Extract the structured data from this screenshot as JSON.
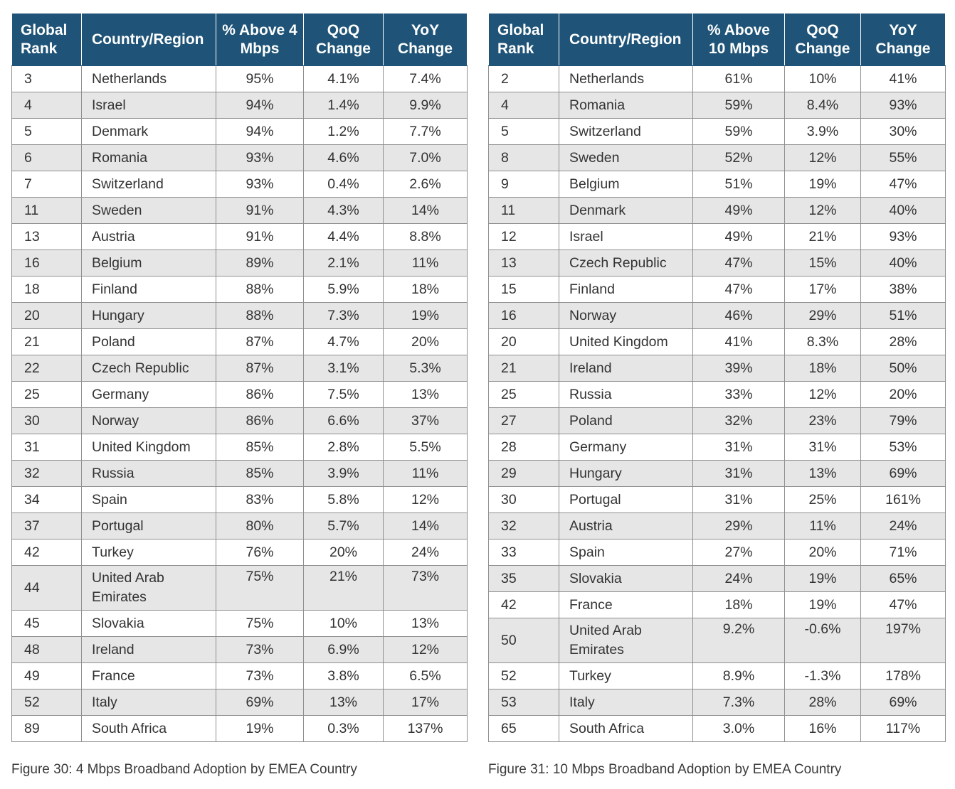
{
  "left": {
    "headers": {
      "rank": "Global Rank",
      "country": "Country/Region",
      "pct": "% Above 4 Mbps",
      "qoq": "QoQ Change",
      "yoy": "YoY Change"
    },
    "rows": [
      {
        "rank": "3",
        "country": "Netherlands",
        "pct": "95%",
        "qoq": "4.1%",
        "yoy": "7.4%"
      },
      {
        "rank": "4",
        "country": "Israel",
        "pct": "94%",
        "qoq": "1.4%",
        "yoy": "9.9%"
      },
      {
        "rank": "5",
        "country": "Denmark",
        "pct": "94%",
        "qoq": "1.2%",
        "yoy": "7.7%"
      },
      {
        "rank": "6",
        "country": "Romania",
        "pct": "93%",
        "qoq": "4.6%",
        "yoy": "7.0%"
      },
      {
        "rank": "7",
        "country": "Switzerland",
        "pct": "93%",
        "qoq": "0.4%",
        "yoy": "2.6%"
      },
      {
        "rank": "11",
        "country": "Sweden",
        "pct": "91%",
        "qoq": "4.3%",
        "yoy": "14%"
      },
      {
        "rank": "13",
        "country": "Austria",
        "pct": "91%",
        "qoq": "4.4%",
        "yoy": "8.8%"
      },
      {
        "rank": "16",
        "country": "Belgium",
        "pct": "89%",
        "qoq": "2.1%",
        "yoy": "11%"
      },
      {
        "rank": "18",
        "country": "Finland",
        "pct": "88%",
        "qoq": "5.9%",
        "yoy": "18%"
      },
      {
        "rank": "20",
        "country": "Hungary",
        "pct": "88%",
        "qoq": "7.3%",
        "yoy": "19%"
      },
      {
        "rank": "21",
        "country": "Poland",
        "pct": "87%",
        "qoq": "4.7%",
        "yoy": "20%"
      },
      {
        "rank": "22",
        "country": "Czech Republic",
        "pct": "87%",
        "qoq": "3.1%",
        "yoy": "5.3%"
      },
      {
        "rank": "25",
        "country": "Germany",
        "pct": "86%",
        "qoq": "7.5%",
        "yoy": "13%"
      },
      {
        "rank": "30",
        "country": "Norway",
        "pct": "86%",
        "qoq": "6.6%",
        "yoy": "37%"
      },
      {
        "rank": "31",
        "country": "United Kingdom",
        "pct": "85%",
        "qoq": "2.8%",
        "yoy": "5.5%"
      },
      {
        "rank": "32",
        "country": "Russia",
        "pct": "85%",
        "qoq": "3.9%",
        "yoy": "11%"
      },
      {
        "rank": "34",
        "country": "Spain",
        "pct": "83%",
        "qoq": "5.8%",
        "yoy": "12%"
      },
      {
        "rank": "37",
        "country": "Portugal",
        "pct": "80%",
        "qoq": "5.7%",
        "yoy": "14%"
      },
      {
        "rank": "42",
        "country": "Turkey",
        "pct": "76%",
        "qoq": "20%",
        "yoy": "24%"
      },
      {
        "rank": "44",
        "country": "United Arab Emirates",
        "pct": "75%",
        "qoq": "21%",
        "yoy": "73%"
      },
      {
        "rank": "45",
        "country": "Slovakia",
        "pct": "75%",
        "qoq": "10%",
        "yoy": "13%"
      },
      {
        "rank": "48",
        "country": "Ireland",
        "pct": "73%",
        "qoq": "6.9%",
        "yoy": "12%"
      },
      {
        "rank": "49",
        "country": "France",
        "pct": "73%",
        "qoq": "3.8%",
        "yoy": "6.5%"
      },
      {
        "rank": "52",
        "country": "Italy",
        "pct": "69%",
        "qoq": "13%",
        "yoy": "17%"
      },
      {
        "rank": "89",
        "country": "South Africa",
        "pct": "19%",
        "qoq": "0.3%",
        "yoy": "137%"
      }
    ],
    "caption": "Figure 30: 4 Mbps Broadband Adoption by EMEA Country"
  },
  "right": {
    "headers": {
      "rank": "Global Rank",
      "country": "Country/Region",
      "pct": "% Above 10 Mbps",
      "qoq": "QoQ Change",
      "yoy": "YoY Change"
    },
    "rows": [
      {
        "rank": "2",
        "country": "Netherlands",
        "pct": "61%",
        "qoq": "10%",
        "yoy": "41%"
      },
      {
        "rank": "4",
        "country": "Romania",
        "pct": "59%",
        "qoq": "8.4%",
        "yoy": "93%"
      },
      {
        "rank": "5",
        "country": "Switzerland",
        "pct": "59%",
        "qoq": "3.9%",
        "yoy": "30%"
      },
      {
        "rank": "8",
        "country": "Sweden",
        "pct": "52%",
        "qoq": "12%",
        "yoy": "55%"
      },
      {
        "rank": "9",
        "country": "Belgium",
        "pct": "51%",
        "qoq": "19%",
        "yoy": "47%"
      },
      {
        "rank": "11",
        "country": "Denmark",
        "pct": "49%",
        "qoq": "12%",
        "yoy": "40%"
      },
      {
        "rank": "12",
        "country": "Israel",
        "pct": "49%",
        "qoq": "21%",
        "yoy": "93%"
      },
      {
        "rank": "13",
        "country": "Czech Republic",
        "pct": "47%",
        "qoq": "15%",
        "yoy": "40%"
      },
      {
        "rank": "15",
        "country": "Finland",
        "pct": "47%",
        "qoq": "17%",
        "yoy": "38%"
      },
      {
        "rank": "16",
        "country": "Norway",
        "pct": "46%",
        "qoq": "29%",
        "yoy": "51%"
      },
      {
        "rank": "20",
        "country": "United Kingdom",
        "pct": "41%",
        "qoq": "8.3%",
        "yoy": "28%"
      },
      {
        "rank": "21",
        "country": "Ireland",
        "pct": "39%",
        "qoq": "18%",
        "yoy": "50%"
      },
      {
        "rank": "25",
        "country": "Russia",
        "pct": "33%",
        "qoq": "12%",
        "yoy": "20%"
      },
      {
        "rank": "27",
        "country": "Poland",
        "pct": "32%",
        "qoq": "23%",
        "yoy": "79%"
      },
      {
        "rank": "28",
        "country": "Germany",
        "pct": "31%",
        "qoq": "31%",
        "yoy": "53%"
      },
      {
        "rank": "29",
        "country": "Hungary",
        "pct": "31%",
        "qoq": "13%",
        "yoy": "69%"
      },
      {
        "rank": "30",
        "country": "Portugal",
        "pct": "31%",
        "qoq": "25%",
        "yoy": "161%"
      },
      {
        "rank": "32",
        "country": "Austria",
        "pct": "29%",
        "qoq": "11%",
        "yoy": "24%"
      },
      {
        "rank": "33",
        "country": "Spain",
        "pct": "27%",
        "qoq": "20%",
        "yoy": "71%"
      },
      {
        "rank": "35",
        "country": "Slovakia",
        "pct": "24%",
        "qoq": "19%",
        "yoy": "65%"
      },
      {
        "rank": "42",
        "country": "France",
        "pct": "18%",
        "qoq": "19%",
        "yoy": "47%"
      },
      {
        "rank": "50",
        "country": "United Arab Emirates",
        "pct": "9.2%",
        "qoq": "-0.6%",
        "yoy": "197%"
      },
      {
        "rank": "52",
        "country": "Turkey",
        "pct": "8.9%",
        "qoq": "-1.3%",
        "yoy": "178%"
      },
      {
        "rank": "53",
        "country": "Italy",
        "pct": "7.3%",
        "qoq": "28%",
        "yoy": "69%"
      },
      {
        "rank": "65",
        "country": "South Africa",
        "pct": "3.0%",
        "qoq": "16%",
        "yoy": "117%"
      }
    ],
    "caption": "Figure 31: 10 Mbps Broadband Adoption by EMEA Country"
  }
}
